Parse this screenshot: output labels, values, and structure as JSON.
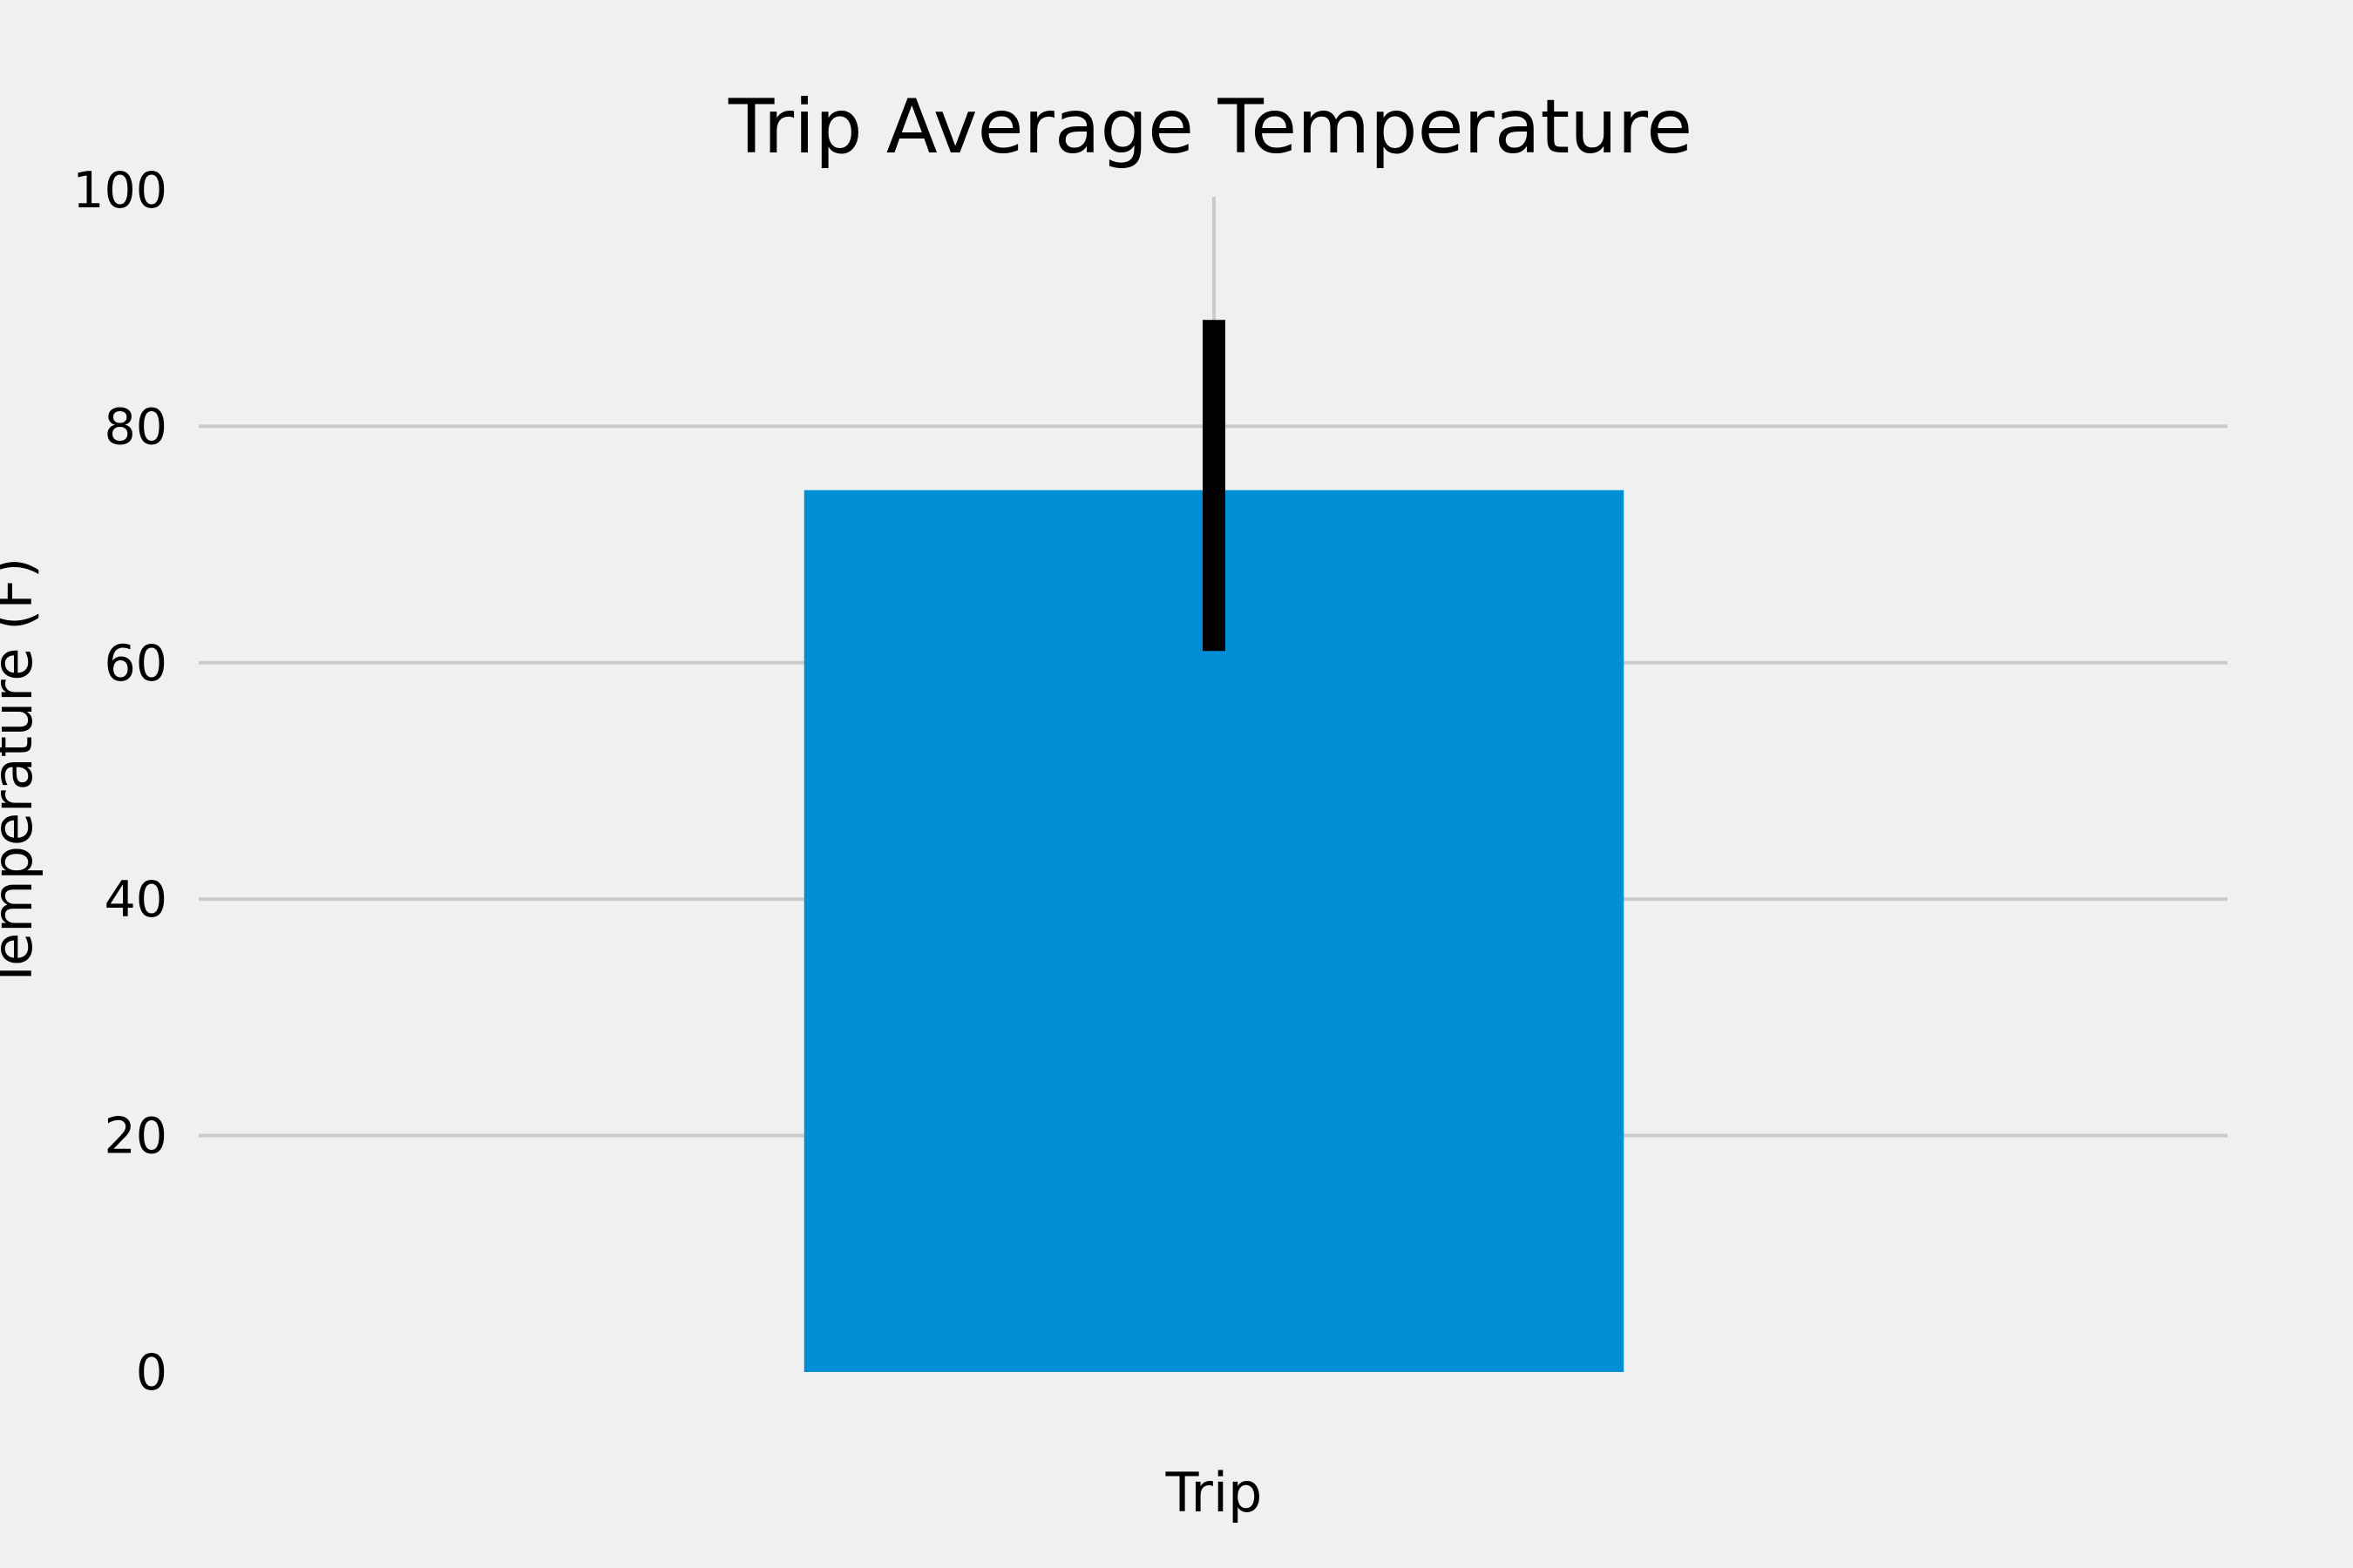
{
  "chart_data": {
    "type": "bar",
    "title": "Trip Average Temperature",
    "xlabel": "",
    "ylabel": "Temperature (F)",
    "categories": [
      "Trip"
    ],
    "values": [
      74.6
    ],
    "error": {
      "lower": 61.0,
      "upper": 89.0
    },
    "ylim": [
      0,
      100
    ],
    "yticks": [
      "0",
      "20",
      "40",
      "60",
      "80",
      "100"
    ],
    "ytick_values": [
      0,
      20,
      40,
      60,
      80,
      100
    ],
    "grid": true,
    "legend": "none",
    "colors": {
      "bar": "#008fd5",
      "error_bar": "#000000",
      "grid": "#cbcbcb",
      "background": "#f0f0f0"
    }
  }
}
